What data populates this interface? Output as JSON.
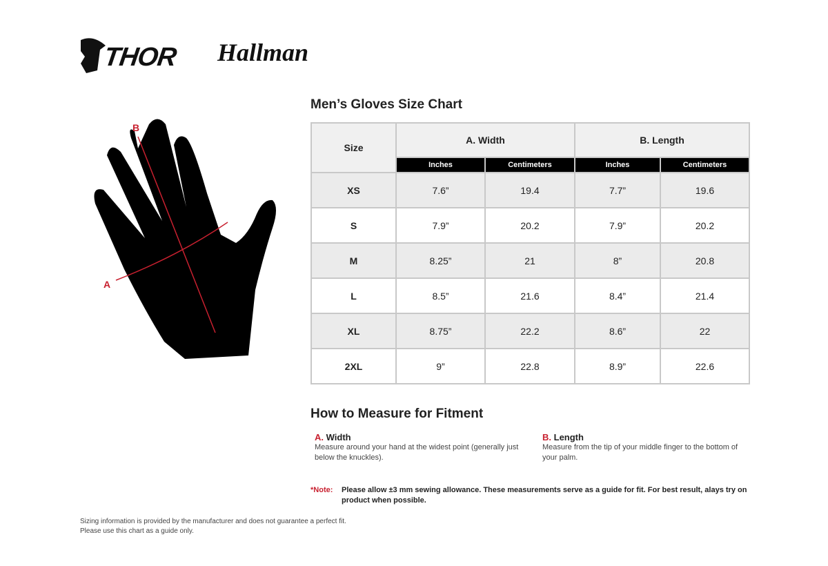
{
  "logos": {
    "thor": "THOR",
    "hallman": "Hallman"
  },
  "diagram": {
    "label_a": "A",
    "label_b": "B",
    "accent": "#c8202f"
  },
  "chart_title": "Men’s Gloves Size Chart",
  "table": {
    "size_header": "Size",
    "width_header": "A. Width",
    "length_header": "B. Length",
    "sub_headers": [
      "Inches",
      "Centimeters",
      "Inches",
      "Centimeters"
    ],
    "rows": [
      {
        "size": "XS",
        "w_in": "7.6”",
        "w_cm": "19.4",
        "l_in": "7.7”",
        "l_cm": "19.6"
      },
      {
        "size": "S",
        "w_in": "7.9”",
        "w_cm": "20.2",
        "l_in": "7.9”",
        "l_cm": "20.2"
      },
      {
        "size": "M",
        "w_in": "8.25”",
        "w_cm": "21",
        "l_in": "8”",
        "l_cm": "20.8"
      },
      {
        "size": "L",
        "w_in": "8.5”",
        "w_cm": "21.6",
        "l_in": "8.4”",
        "l_cm": "21.4"
      },
      {
        "size": "XL",
        "w_in": "8.75”",
        "w_cm": "22.2",
        "l_in": "8.6”",
        "l_cm": "22"
      },
      {
        "size": "2XL",
        "w_in": "9”",
        "w_cm": "22.8",
        "l_in": "8.9”",
        "l_cm": "22.6"
      }
    ]
  },
  "measure": {
    "title": "How to Measure for Fitment",
    "a": {
      "letter": "A.",
      "label": "Width",
      "text": "Measure around your hand at the widest point (generally just below the knuckles)."
    },
    "b": {
      "letter": "B.",
      "label": "Length",
      "text": "Measure from the tip of your middle finger to the bottom of your palm."
    }
  },
  "note": {
    "key": "*Note:",
    "text": "Please allow ±3 mm sewing allowance. These measurements serve as a guide for fit. For best result, alays try on product when possible."
  },
  "footer": {
    "line1": "Sizing information is provided by the manufacturer and does not guarantee a perfect fit.",
    "line2": "Please use this chart as a guide only."
  }
}
